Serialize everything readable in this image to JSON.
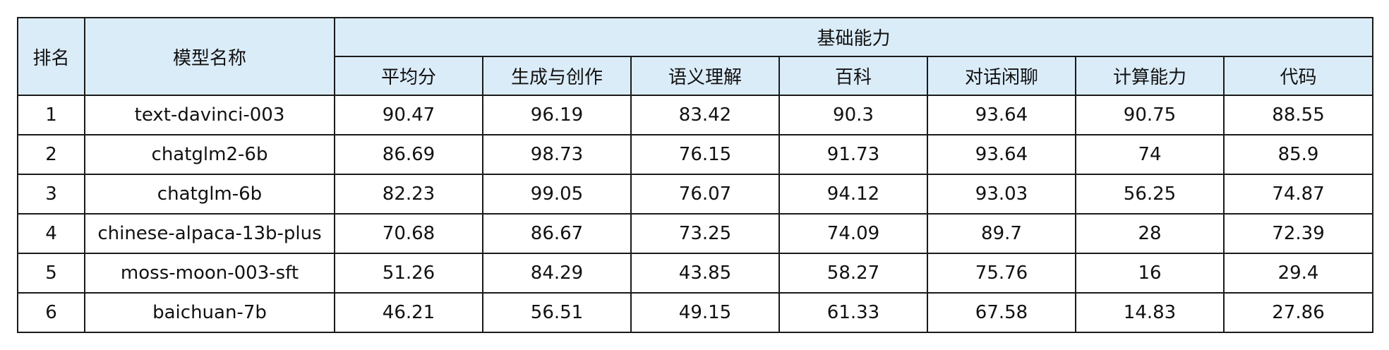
{
  "header": {
    "rank": "排名",
    "model": "模型名称",
    "group": "基础能力",
    "columns": [
      "平均分",
      "生成与创作",
      "语义理解",
      "百科",
      "对话闲聊",
      "计算能力",
      "代码"
    ]
  },
  "rows": [
    {
      "rank": "1",
      "model": "text-davinci-003",
      "values": [
        "90.47",
        "96.19",
        "83.42",
        "90.3",
        "93.64",
        "90.75",
        "88.55"
      ]
    },
    {
      "rank": "2",
      "model": "chatglm2-6b",
      "values": [
        "86.69",
        "98.73",
        "76.15",
        "91.73",
        "93.64",
        "74",
        "85.9"
      ]
    },
    {
      "rank": "3",
      "model": "chatglm-6b",
      "values": [
        "82.23",
        "99.05",
        "76.07",
        "94.12",
        "93.03",
        "56.25",
        "74.87"
      ]
    },
    {
      "rank": "4",
      "model": "chinese-alpaca-13b-plus",
      "values": [
        "70.68",
        "86.67",
        "73.25",
        "74.09",
        "89.7",
        "28",
        "72.39"
      ]
    },
    {
      "rank": "5",
      "model": "moss-moon-003-sft",
      "values": [
        "51.26",
        "84.29",
        "43.85",
        "58.27",
        "75.76",
        "16",
        "29.4"
      ]
    },
    {
      "rank": "6",
      "model": "baichuan-7b",
      "values": [
        "46.21",
        "56.51",
        "49.15",
        "61.33",
        "67.58",
        "14.83",
        "27.86"
      ]
    }
  ]
}
